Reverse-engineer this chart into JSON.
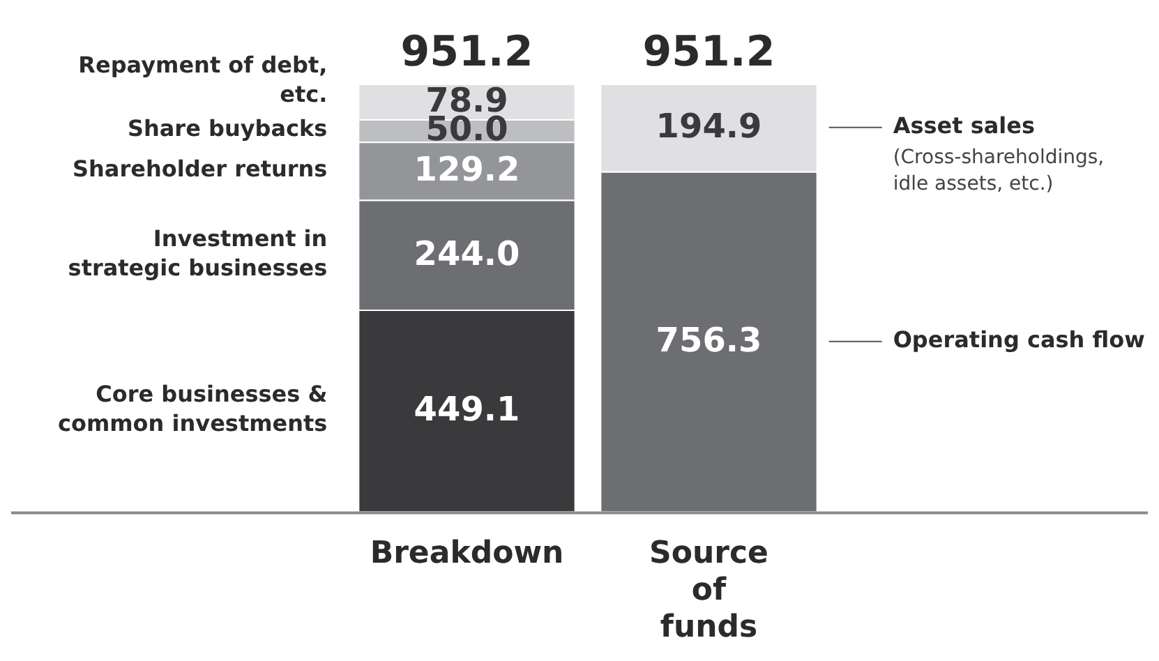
{
  "chart_data": {
    "type": "bar",
    "stacked": true,
    "categories": [
      "Breakdown",
      "Source of funds"
    ],
    "series": [
      {
        "name": "Core businesses & common investments",
        "color": "#3a3a3c",
        "values": [
          449.1,
          null
        ],
        "value_labels": [
          "449.1",
          null
        ]
      },
      {
        "name": "Investment in strategic businesses",
        "color": "#6d6e71",
        "values": [
          244.0,
          null
        ],
        "value_labels": [
          "244.0",
          null
        ]
      },
      {
        "name": "Shareholder returns",
        "color": "#939598",
        "values": [
          129.2,
          null
        ],
        "value_labels": [
          "129.2",
          null
        ]
      },
      {
        "name": "Share buybacks",
        "color": "#bcbec0",
        "values": [
          50.0,
          null
        ],
        "value_labels": [
          "50.0",
          null
        ]
      },
      {
        "name": "Repayment of debt, etc.",
        "color": "#e0e0e2",
        "values": [
          78.9,
          null
        ],
        "value_labels": [
          "78.9",
          null
        ]
      },
      {
        "name": "Operating cash flow",
        "color": "#6d6e71",
        "values": [
          null,
          756.3
        ],
        "value_labels": [
          null,
          "756.3"
        ]
      },
      {
        "name": "Asset sales",
        "color": "#e0e0e2",
        "values": [
          null,
          194.9
        ],
        "value_labels": [
          null,
          "194.9"
        ]
      }
    ],
    "totals": [
      "951.2",
      "951.2"
    ],
    "annotations": [
      "(Cross-shareholdings, idle assets, etc.)"
    ],
    "legend": false,
    "grid": false
  }
}
